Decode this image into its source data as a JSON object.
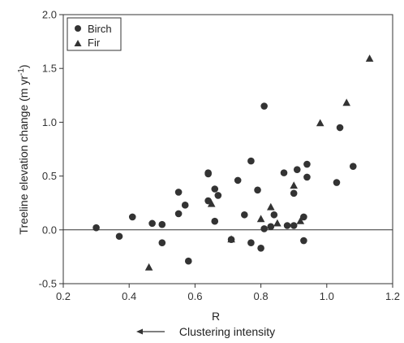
{
  "chart_data": {
    "type": "scatter",
    "xlabel": "R",
    "ylabel": "Treeline elevation change (m yr-1)",
    "ylabel_parts": {
      "main": "Treeline elevation change (m yr",
      "sup": "-1",
      "end": ")"
    },
    "xlim": [
      0.2,
      1.2
    ],
    "ylim": [
      -0.5,
      2.0
    ],
    "xticks": [
      0.2,
      0.4,
      0.6,
      0.8,
      1.0,
      1.2
    ],
    "xtick_labels": [
      "0.2",
      "0.4",
      "0.6",
      "0.8",
      "1.0",
      "1.2"
    ],
    "yticks": [
      -0.5,
      0.0,
      0.5,
      1.0,
      1.5,
      2.0
    ],
    "ytick_labels": [
      "-0.5",
      "0.0",
      "0.5",
      "1.0",
      "1.5",
      "2.0"
    ],
    "reference_line_y": 0,
    "grid": false,
    "legend_position": "top-left",
    "annotation": {
      "arrow": "left",
      "text": "Clustering intensity"
    },
    "colors": {
      "marker": "#333333",
      "axis": "#333333"
    },
    "series": [
      {
        "name": "Birch",
        "marker": "circle",
        "points": [
          [
            0.3,
            0.02
          ],
          [
            0.37,
            -0.06
          ],
          [
            0.41,
            0.12
          ],
          [
            0.47,
            0.06
          ],
          [
            0.5,
            0.05
          ],
          [
            0.5,
            -0.12
          ],
          [
            0.55,
            0.35
          ],
          [
            0.55,
            0.15
          ],
          [
            0.57,
            0.23
          ],
          [
            0.58,
            -0.29
          ],
          [
            0.64,
            0.53
          ],
          [
            0.64,
            0.52
          ],
          [
            0.64,
            0.27
          ],
          [
            0.66,
            0.38
          ],
          [
            0.66,
            0.08
          ],
          [
            0.67,
            0.32
          ],
          [
            0.71,
            -0.09
          ],
          [
            0.73,
            0.46
          ],
          [
            0.75,
            0.14
          ],
          [
            0.77,
            0.64
          ],
          [
            0.77,
            -0.12
          ],
          [
            0.79,
            0.37
          ],
          [
            0.8,
            -0.17
          ],
          [
            0.81,
            1.15
          ],
          [
            0.81,
            0.01
          ],
          [
            0.83,
            0.03
          ],
          [
            0.84,
            0.14
          ],
          [
            0.87,
            0.53
          ],
          [
            0.88,
            0.04
          ],
          [
            0.9,
            0.34
          ],
          [
            0.9,
            0.04
          ],
          [
            0.91,
            0.56
          ],
          [
            0.93,
            0.12
          ],
          [
            0.93,
            -0.1
          ],
          [
            0.94,
            0.61
          ],
          [
            0.94,
            0.49
          ],
          [
            1.03,
            0.44
          ],
          [
            1.04,
            0.95
          ],
          [
            1.08,
            0.59
          ]
        ]
      },
      {
        "name": "Fir",
        "marker": "triangle",
        "points": [
          [
            0.46,
            -0.35
          ],
          [
            0.65,
            0.24
          ],
          [
            0.71,
            -0.09
          ],
          [
            0.8,
            0.1
          ],
          [
            0.83,
            0.21
          ],
          [
            0.85,
            0.06
          ],
          [
            0.9,
            0.41
          ],
          [
            0.92,
            0.08
          ],
          [
            0.98,
            0.99
          ],
          [
            1.06,
            1.18
          ],
          [
            1.13,
            1.59
          ]
        ]
      }
    ]
  }
}
